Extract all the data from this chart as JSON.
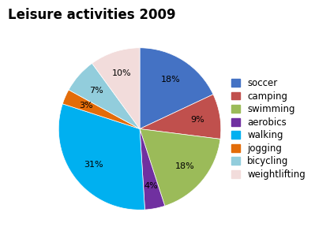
{
  "title": "Leisure activities 2009",
  "labels": [
    "soccer",
    "camping",
    "swimming",
    "aerobics",
    "walking",
    "jogging",
    "bicycling",
    "weightlifting"
  ],
  "values": [
    18,
    9,
    18,
    4,
    31,
    3,
    7,
    10
  ],
  "colors": [
    "#4472C4",
    "#C0504D",
    "#9BBB59",
    "#7030A0",
    "#00B0F0",
    "#E36C09",
    "#92CDDC",
    "#F2DCDB"
  ],
  "title_fontsize": 12,
  "legend_fontsize": 8.5,
  "pct_fontsize": 8,
  "startangle": 90
}
